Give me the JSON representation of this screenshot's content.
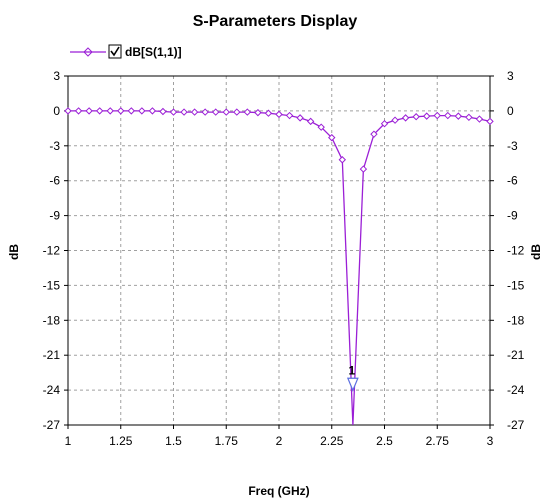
{
  "chart_data": {
    "type": "line",
    "title": "S-Parameters Display",
    "xlabel": "Freq (GHz)",
    "ylabel": "dB",
    "ylabel_right": "dB",
    "xlim": [
      1,
      3
    ],
    "ylim": [
      -27,
      3
    ],
    "x_ticks": [
      "1",
      "1.25",
      "1.5",
      "1.75",
      "2",
      "2.25",
      "2.5",
      "2.75",
      "3"
    ],
    "y_ticks": [
      "3",
      "0",
      "-3",
      "-6",
      "-9",
      "-12",
      "-15",
      "-18",
      "-21",
      "-24",
      "-27"
    ],
    "grid": true,
    "legend_position": "top-left",
    "series": [
      {
        "name": "dB[S(1,1)]",
        "color": "#9b1fd6",
        "marker": "diamond",
        "x": [
          1.0,
          1.05,
          1.1,
          1.15,
          1.2,
          1.25,
          1.3,
          1.35,
          1.4,
          1.45,
          1.5,
          1.55,
          1.6,
          1.65,
          1.7,
          1.75,
          1.8,
          1.85,
          1.9,
          1.95,
          2.0,
          2.05,
          2.1,
          2.15,
          2.2,
          2.25,
          2.3,
          2.35,
          2.4,
          2.45,
          2.5,
          2.55,
          2.6,
          2.65,
          2.7,
          2.75,
          2.8,
          2.85,
          2.9,
          2.95,
          3.0
        ],
        "y": [
          0.0,
          0.0,
          0.0,
          0.0,
          0.0,
          0.0,
          0.0,
          0.0,
          0.0,
          -0.05,
          -0.1,
          -0.1,
          -0.1,
          -0.1,
          -0.1,
          -0.1,
          -0.1,
          -0.1,
          -0.15,
          -0.2,
          -0.3,
          -0.4,
          -0.6,
          -0.9,
          -1.4,
          -2.3,
          -4.2,
          -27.0,
          -5.0,
          -2.0,
          -1.1,
          -0.8,
          -0.6,
          -0.5,
          -0.45,
          -0.4,
          -0.4,
          -0.45,
          -0.55,
          -0.7,
          -0.9
        ]
      }
    ],
    "marker_label": {
      "text": "1",
      "x": 2.35,
      "y": -23.5
    }
  }
}
